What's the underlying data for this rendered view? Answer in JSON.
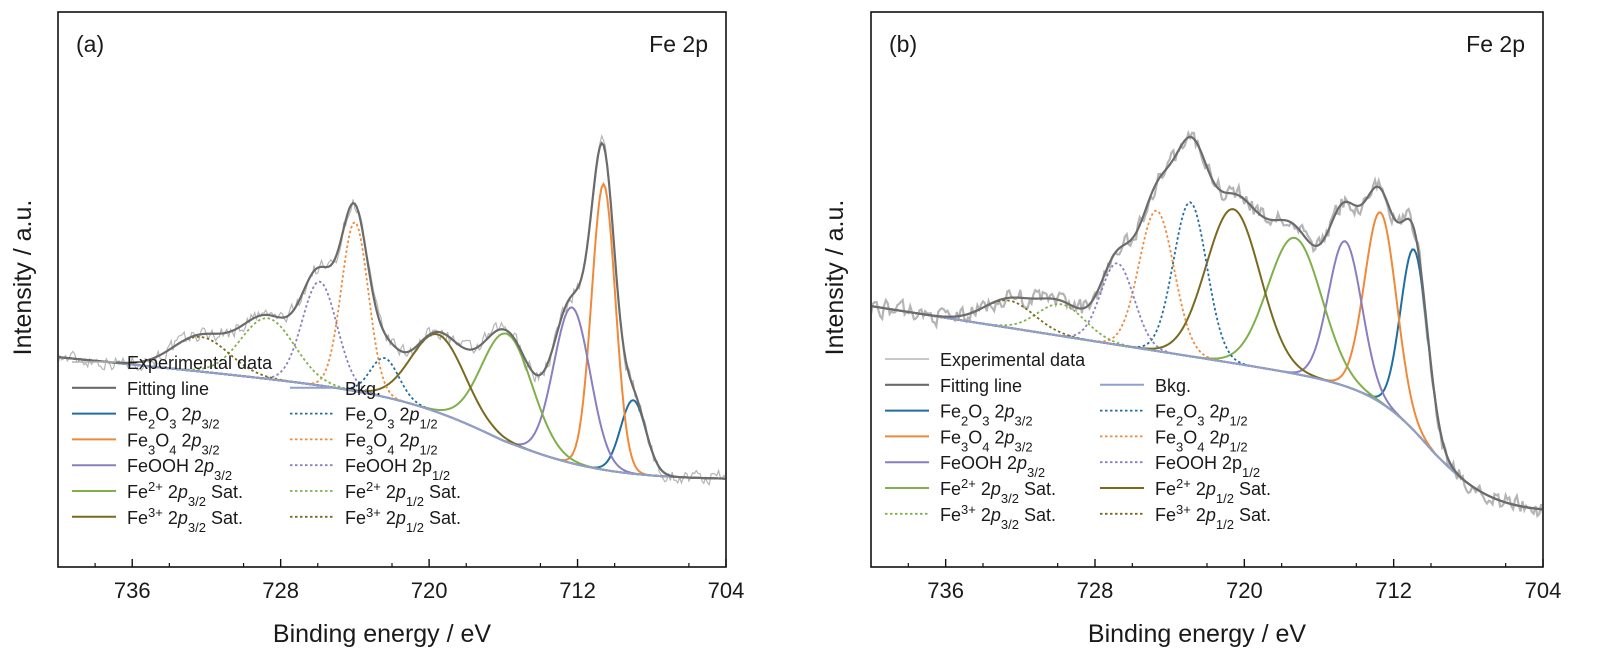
{
  "colors": {
    "experimental": "#b5b5b5",
    "fitting": "#6b6b6b",
    "bkg": "#8fa0cf",
    "fe2o3": "#1f6ea3",
    "fe3o4": "#ee8a3a",
    "feooh": "#8a7ec0",
    "fe2sat": "#7fb04a",
    "fe3sat": "#7a6a1f"
  },
  "legend_entries": [
    {
      "key": "exp",
      "text": "Experimental data",
      "style": "exp"
    },
    {
      "key": "fit",
      "text": "Fitting line",
      "style": "fit"
    },
    {
      "key": "bkg",
      "text": "Bkg.",
      "style": "bkg"
    },
    {
      "key": "fe2o3_32",
      "html": "Fe<tspan baseline-shift=\"sub\" font-size=\"13\">2</tspan>O<tspan baseline-shift=\"sub\" font-size=\"13\">3</tspan> 2<tspan font-style=\"italic\">p</tspan><tspan baseline-shift=\"sub\" font-size=\"13\">3/2</tspan>",
      "label": "Fe2O3 2p3/2",
      "style": "fe2o3-solid"
    },
    {
      "key": "fe2o3_12",
      "html": "Fe<tspan baseline-shift=\"sub\" font-size=\"13\">2</tspan>O<tspan baseline-shift=\"sub\" font-size=\"13\">3</tspan> 2<tspan font-style=\"italic\">p</tspan><tspan baseline-shift=\"sub\" font-size=\"13\">1/2</tspan>",
      "label": "Fe2O3 2p1/2",
      "style": "fe2o3-dot"
    },
    {
      "key": "fe3o4_32",
      "html": "Fe<tspan baseline-shift=\"sub\" font-size=\"13\">3</tspan>O<tspan baseline-shift=\"sub\" font-size=\"13\">4</tspan> 2<tspan font-style=\"italic\">p</tspan><tspan baseline-shift=\"sub\" font-size=\"13\">3/2</tspan>",
      "label": "Fe3O4 2p3/2",
      "style": "fe3o4-solid"
    },
    {
      "key": "fe3o4_12",
      "html": "Fe<tspan baseline-shift=\"sub\" font-size=\"13\">3</tspan>O<tspan baseline-shift=\"sub\" font-size=\"13\">4</tspan> 2<tspan font-style=\"italic\">p</tspan><tspan baseline-shift=\"sub\" font-size=\"13\">1/2</tspan>",
      "label": "Fe3O4 2p1/2",
      "style": "fe3o4-dot"
    },
    {
      "key": "feooh_32",
      "html": "FeOOH 2<tspan font-style=\"italic\">p</tspan><tspan baseline-shift=\"sub\" font-size=\"13\">3/2</tspan>",
      "label": "FeOOH 2p3/2",
      "style": "feooh-solid"
    },
    {
      "key": "feooh_12",
      "html": "FeOOH 2p<tspan baseline-shift=\"sub\" font-size=\"13\">1/2</tspan>",
      "label": "FeOOH 2p1/2",
      "style": "feooh-dot"
    },
    {
      "key": "fe2_32",
      "html": "Fe<tspan baseline-shift=\"super\" font-size=\"13\">2+</tspan> 2<tspan font-style=\"italic\">p</tspan><tspan baseline-shift=\"sub\" font-size=\"13\">3/2</tspan> Sat.",
      "label": "Fe2+ 2p3/2 Sat.",
      "style": "fe2-solid"
    },
    {
      "key": "fe2_12",
      "html": "Fe<tspan baseline-shift=\"super\" font-size=\"13\">2+</tspan> 2<tspan font-style=\"italic\">p</tspan><tspan baseline-shift=\"sub\" font-size=\"13\">1/2</tspan> Sat.",
      "label": "Fe2+ 2p1/2 Sat.",
      "style": "fe2-12"
    },
    {
      "key": "fe3_32",
      "html": "Fe<tspan baseline-shift=\"super\" font-size=\"13\">3+</tspan> 2<tspan font-style=\"italic\">p</tspan><tspan baseline-shift=\"sub\" font-size=\"13\">3/2</tspan> Sat.",
      "label": "Fe3+ 2p3/2 Sat.",
      "style": "fe3-32"
    },
    {
      "key": "fe3_12",
      "html": "Fe<tspan baseline-shift=\"super\" font-size=\"13\">3+</tspan> 2<tspan font-style=\"italic\">p</tspan><tspan baseline-shift=\"sub\" font-size=\"13\">1/2</tspan> Sat.",
      "label": "Fe3+ 2p1/2 Sat.",
      "style": "fe3-dot"
    }
  ],
  "chart_data": [
    {
      "type": "line",
      "panel_label": "(a)",
      "element_label": "Fe 2p",
      "xlabel": "Binding energy / eV",
      "ylabel": "Intensity / a.u.",
      "xlim": [
        740,
        704
      ],
      "ylim": [
        0,
        100
      ],
      "xticks": [
        736,
        728,
        720,
        712,
        704
      ],
      "legend": "bottom-left",
      "background": {
        "center": 716,
        "width": 2.8,
        "low": 4,
        "high": 22,
        "slope": 1.0,
        "ref": 722,
        "curv": 0.08
      },
      "peaks": [
        {
          "name": "Fe2O3 2p3/2",
          "color_key": "fe2o3",
          "dash": "solid",
          "center": 709.0,
          "height": 17,
          "fwhm": 1.6
        },
        {
          "name": "Fe3O4 2p3/2",
          "color_key": "fe3o4",
          "dash": "solid",
          "center": 710.6,
          "height": 66,
          "fwhm": 1.5
        },
        {
          "name": "FeOOH 2p3/2",
          "color_key": "feooh",
          "dash": "solid",
          "center": 712.3,
          "height": 36,
          "fwhm": 2.3
        },
        {
          "name": "Fe2+ 2p3/2 Sat.",
          "color_key": "fe2sat",
          "dash": "solid",
          "center": 715.8,
          "height": 25,
          "fwhm": 3.2
        },
        {
          "name": "Fe3+ 2p3/2 Sat.",
          "color_key": "fe3sat",
          "dash": "solid",
          "center": 719.5,
          "height": 18,
          "fwhm": 3.4
        },
        {
          "name": "Fe2O3 2p1/2",
          "color_key": "fe2o3",
          "dash": "dot",
          "center": 722.4,
          "height": 9,
          "fwhm": 1.8
        },
        {
          "name": "Fe3O4 2p1/2",
          "color_key": "fe3o4",
          "dash": "dot",
          "center": 724.0,
          "height": 39,
          "fwhm": 1.7
        },
        {
          "name": "FeOOH 2p1/2",
          "color_key": "feooh",
          "dash": "dot",
          "center": 725.9,
          "height": 24,
          "fwhm": 2.2
        },
        {
          "name": "Fe2+ 2p1/2 Sat.",
          "color_key": "fe2sat",
          "dash": "dot",
          "center": 728.7,
          "height": 14,
          "fwhm": 3.4
        },
        {
          "name": "Fe3+ 2p1/2 Sat.",
          "color_key": "fe3sat",
          "dash": "dot",
          "center": 732.3,
          "height": 8,
          "fwhm": 3.6
        }
      ],
      "noise": 1.6
    },
    {
      "type": "line",
      "panel_label": "(b)",
      "element_label": "Fe 2p",
      "xlabel": "Binding energy / eV",
      "ylabel": "Intensity / a.u.",
      "xlim": [
        740,
        704
      ],
      "ylim": [
        0,
        100
      ],
      "xticks": [
        736,
        728,
        720,
        712,
        704
      ],
      "legend": "bottom-left",
      "background": {
        "center": 709.8,
        "width": 1.6,
        "low": 1,
        "high": 27,
        "slope": 1.85,
        "ref": 712,
        "curv": 0.0
      },
      "peaks": [
        {
          "name": "Fe2O3 2p3/2",
          "color_key": "fe2o3",
          "dash": "solid",
          "center": 710.9,
          "height": 40,
          "fwhm": 1.7
        },
        {
          "name": "Fe3O4 2p3/2",
          "color_key": "fe3o4",
          "dash": "solid",
          "center": 712.7,
          "height": 42,
          "fwhm": 2.0
        },
        {
          "name": "FeOOH 2p3/2",
          "color_key": "feooh",
          "dash": "solid",
          "center": 714.6,
          "height": 32,
          "fwhm": 2.1
        },
        {
          "name": "Fe2+ 2p3/2 Sat.",
          "color_key": "fe2sat",
          "dash": "solid",
          "center": 717.3,
          "height": 30,
          "fwhm": 3.4
        },
        {
          "name": "Fe2+ 2p1/2 Sat.",
          "color_key": "fe3sat",
          "dash": "solid",
          "center": 720.6,
          "height": 34,
          "fwhm": 3.4
        },
        {
          "name": "Fe2O3 2p1/2",
          "color_key": "fe2o3",
          "dash": "dot",
          "center": 722.9,
          "height": 34,
          "fwhm": 2.1
        },
        {
          "name": "Fe3O4 2p1/2",
          "color_key": "fe3o4",
          "dash": "dot",
          "center": 724.7,
          "height": 31,
          "fwhm": 2.2
        },
        {
          "name": "FeOOH 2p1/2",
          "color_key": "feooh",
          "dash": "dot",
          "center": 726.8,
          "height": 18,
          "fwhm": 2.1
        },
        {
          "name": "Fe3+ 2p3/2 Sat.",
          "color_key": "fe2sat",
          "dash": "dot",
          "center": 729.8,
          "height": 7,
          "fwhm": 3.0
        },
        {
          "name": "Fe3+ 2p1/2 Sat.",
          "color_key": "fe3sat",
          "dash": "dot",
          "center": 732.6,
          "height": 6,
          "fwhm": 3.2
        }
      ],
      "noise": 1.8
    }
  ]
}
